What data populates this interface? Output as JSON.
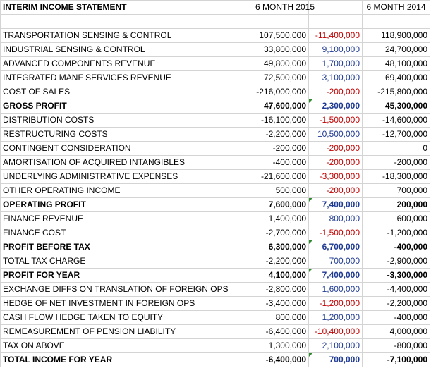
{
  "header": {
    "title": "INTERIM INCOME STATEMENT",
    "col_2015": "6 MONTH 2015",
    "col_diff": "",
    "col_2014": "6 MONTH 2014"
  },
  "colors": {
    "negative_diff": "#c00000",
    "positive_diff": "#1f3a93",
    "error_flag": "#2e8b2e"
  },
  "rows": [
    {
      "label": "TRANSPORTATION SENSING & CONTROL",
      "v2015": "107,500,000",
      "diff": "-11,400,000",
      "v2014": "118,900,000",
      "bold": false,
      "flag": false
    },
    {
      "label": "INDUSTRIAL SENSING & CONTROL",
      "v2015": "33,800,000",
      "diff": "9,100,000",
      "v2014": "24,700,000",
      "bold": false,
      "flag": false
    },
    {
      "label": "ADVANCED COMPONENTS REVENUE",
      "v2015": "49,800,000",
      "diff": "1,700,000",
      "v2014": "48,100,000",
      "bold": false,
      "flag": false
    },
    {
      "label": "INTEGRATED MANF SERVICES REVENUE",
      "v2015": "72,500,000",
      "diff": "3,100,000",
      "v2014": "69,400,000",
      "bold": false,
      "flag": false
    },
    {
      "label": "COST OF SALES",
      "v2015": "-216,000,000",
      "diff": "-200,000",
      "v2014": "-215,800,000",
      "bold": false,
      "flag": false
    },
    {
      "label": "GROSS PROFIT",
      "v2015": "47,600,000",
      "diff": "2,300,000",
      "v2014": "45,300,000",
      "bold": true,
      "flag": true
    },
    {
      "label": "DISTRIBUTION COSTS",
      "v2015": "-16,100,000",
      "diff": "-1,500,000",
      "v2014": "-14,600,000",
      "bold": false,
      "flag": false
    },
    {
      "label": "RESTRUCTURING COSTS",
      "v2015": "-2,200,000",
      "diff": "10,500,000",
      "v2014": "-12,700,000",
      "bold": false,
      "flag": false
    },
    {
      "label": "CONTINGENT CONSIDERATION",
      "v2015": "-200,000",
      "diff": "-200,000",
      "v2014": "0",
      "bold": false,
      "flag": false
    },
    {
      "label": "AMORTISATION OF ACQUIRED INTANGIBLES",
      "v2015": "-400,000",
      "diff": "-200,000",
      "v2014": "-200,000",
      "bold": false,
      "flag": false
    },
    {
      "label": "UNDERLYING ADMINISTRATIVE EXPENSES",
      "v2015": "-21,600,000",
      "diff": "-3,300,000",
      "v2014": "-18,300,000",
      "bold": false,
      "flag": false
    },
    {
      "label": "OTHER OPERATING INCOME",
      "v2015": "500,000",
      "diff": "-200,000",
      "v2014": "700,000",
      "bold": false,
      "flag": false
    },
    {
      "label": "OPERATING PROFIT",
      "v2015": "7,600,000",
      "diff": "7,400,000",
      "v2014": "200,000",
      "bold": true,
      "flag": true
    },
    {
      "label": "FINANCE REVENUE",
      "v2015": "1,400,000",
      "diff": "800,000",
      "v2014": "600,000",
      "bold": false,
      "flag": false
    },
    {
      "label": "FINANCE COST",
      "v2015": "-2,700,000",
      "diff": "-1,500,000",
      "v2014": "-1,200,000",
      "bold": false,
      "flag": false
    },
    {
      "label": "PROFIT BEFORE TAX",
      "v2015": "6,300,000",
      "diff": "6,700,000",
      "v2014": "-400,000",
      "bold": true,
      "flag": true
    },
    {
      "label": "TOTAL TAX CHARGE",
      "v2015": "-2,200,000",
      "diff": "700,000",
      "v2014": "-2,900,000",
      "bold": false,
      "flag": false
    },
    {
      "label": "PROFIT FOR YEAR",
      "v2015": "4,100,000",
      "diff": "7,400,000",
      "v2014": "-3,300,000",
      "bold": true,
      "flag": true
    },
    {
      "label": "EXCHANGE DIFFS ON TRANSLATION OF FOREIGN OPS",
      "v2015": "-2,800,000",
      "diff": "1,600,000",
      "v2014": "-4,400,000",
      "bold": false,
      "flag": false
    },
    {
      "label": "HEDGE OF NET INVESTMENT IN FOREIGN OPS",
      "v2015": "-3,400,000",
      "diff": "-1,200,000",
      "v2014": "-2,200,000",
      "bold": false,
      "flag": false
    },
    {
      "label": "CASH FLOW HEDGE TAKEN TO EQUITY",
      "v2015": "800,000",
      "diff": "1,200,000",
      "v2014": "-400,000",
      "bold": false,
      "flag": false
    },
    {
      "label": "REMEASUREMENT OF PENSION LIABILITY",
      "v2015": "-6,400,000",
      "diff": "-10,400,000",
      "v2014": "4,000,000",
      "bold": false,
      "flag": false
    },
    {
      "label": "TAX ON ABOVE",
      "v2015": "1,300,000",
      "diff": "2,100,000",
      "v2014": "-800,000",
      "bold": false,
      "flag": false
    },
    {
      "label": "TOTAL INCOME FOR YEAR",
      "v2015": "-6,400,000",
      "diff": "700,000",
      "v2014": "-7,100,000",
      "bold": true,
      "flag": true
    }
  ]
}
